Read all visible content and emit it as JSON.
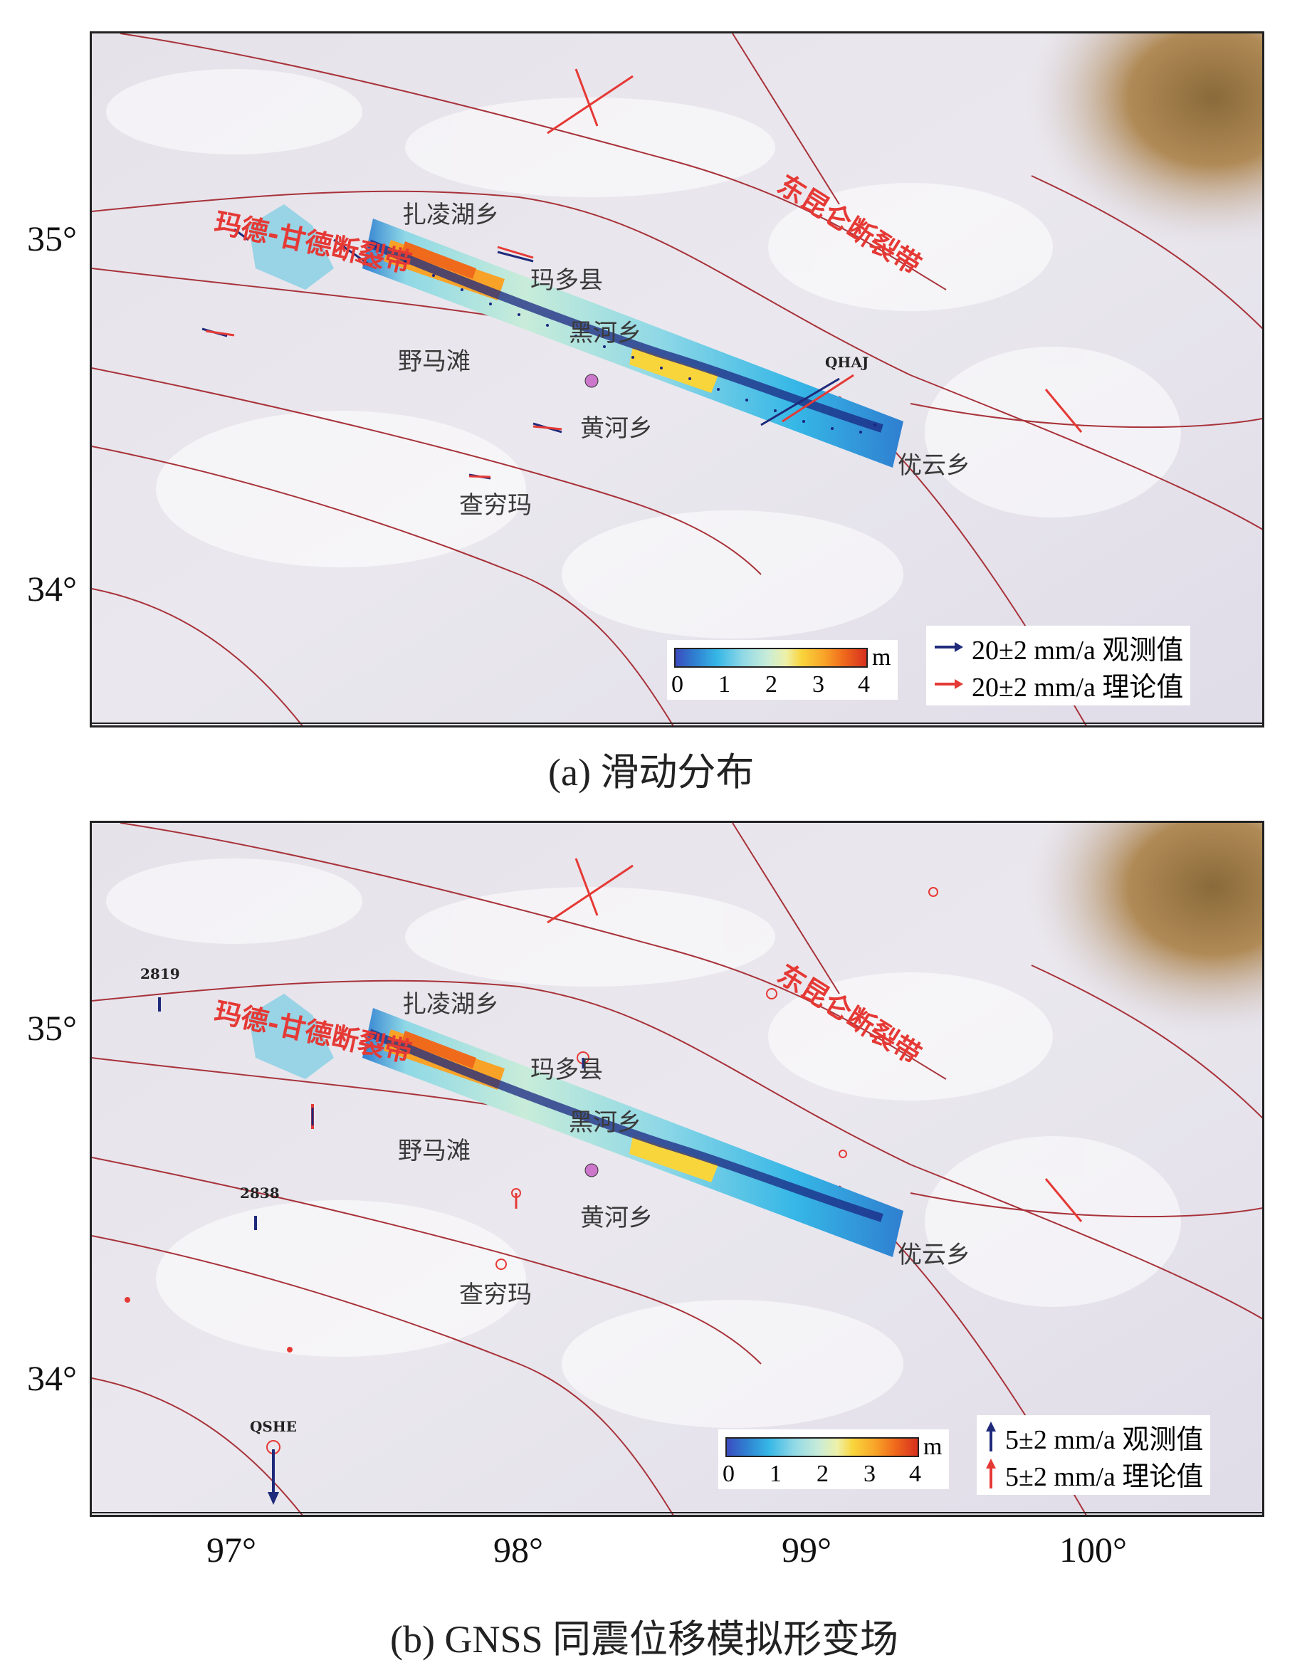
{
  "panel_a": {
    "caption": "(a) 滑动分布",
    "fault_east": "东昆仑断裂带",
    "fault_west": "玛德-甘德断裂带",
    "places": {
      "zhalinghu": "扎凌湖乡",
      "maduo": "玛多县",
      "heihe": "黑河乡",
      "yematan": "野马滩",
      "huanghe": "黄河乡",
      "youyun": "优云乡",
      "chaqiongma": "查穷玛"
    },
    "station_qhaj": "QHAJ",
    "colorbar": {
      "unit": "m",
      "ticks": [
        "0",
        "1",
        "2",
        "3",
        "4"
      ]
    },
    "legend": {
      "observed": "20±2 mm/a 观测值",
      "modeled": "20±2 mm/a 理论值"
    }
  },
  "panel_b": {
    "caption": "(b) GNSS 同震位移模拟形变场",
    "fault_east": "东昆仑断裂带",
    "fault_west": "玛德-甘德断裂带",
    "places": {
      "zhalinghu": "扎凌湖乡",
      "maduo": "玛多县",
      "heihe": "黑河乡",
      "yematan": "野马滩",
      "huanghe": "黄河乡",
      "youyun": "优云乡",
      "chaqiongma": "查穷玛"
    },
    "stations": {
      "s2819": "2819",
      "s2838": "2838",
      "qshe": "QSHE"
    },
    "colorbar": {
      "unit": "m",
      "ticks": [
        "0",
        "1",
        "2",
        "3",
        "4"
      ]
    },
    "legend": {
      "observed": "5±2 mm/a 观测值",
      "modeled": "5±2 mm/a 理论值"
    }
  },
  "axes": {
    "y_ticks": [
      "35°",
      "34°"
    ],
    "x_ticks": [
      "97°",
      "98°",
      "99°",
      "100°"
    ]
  },
  "colors": {
    "observed": "#1f2a7a",
    "modeled": "#e53935",
    "fault": "#a8323a",
    "aftershock": "#1a2580"
  }
}
